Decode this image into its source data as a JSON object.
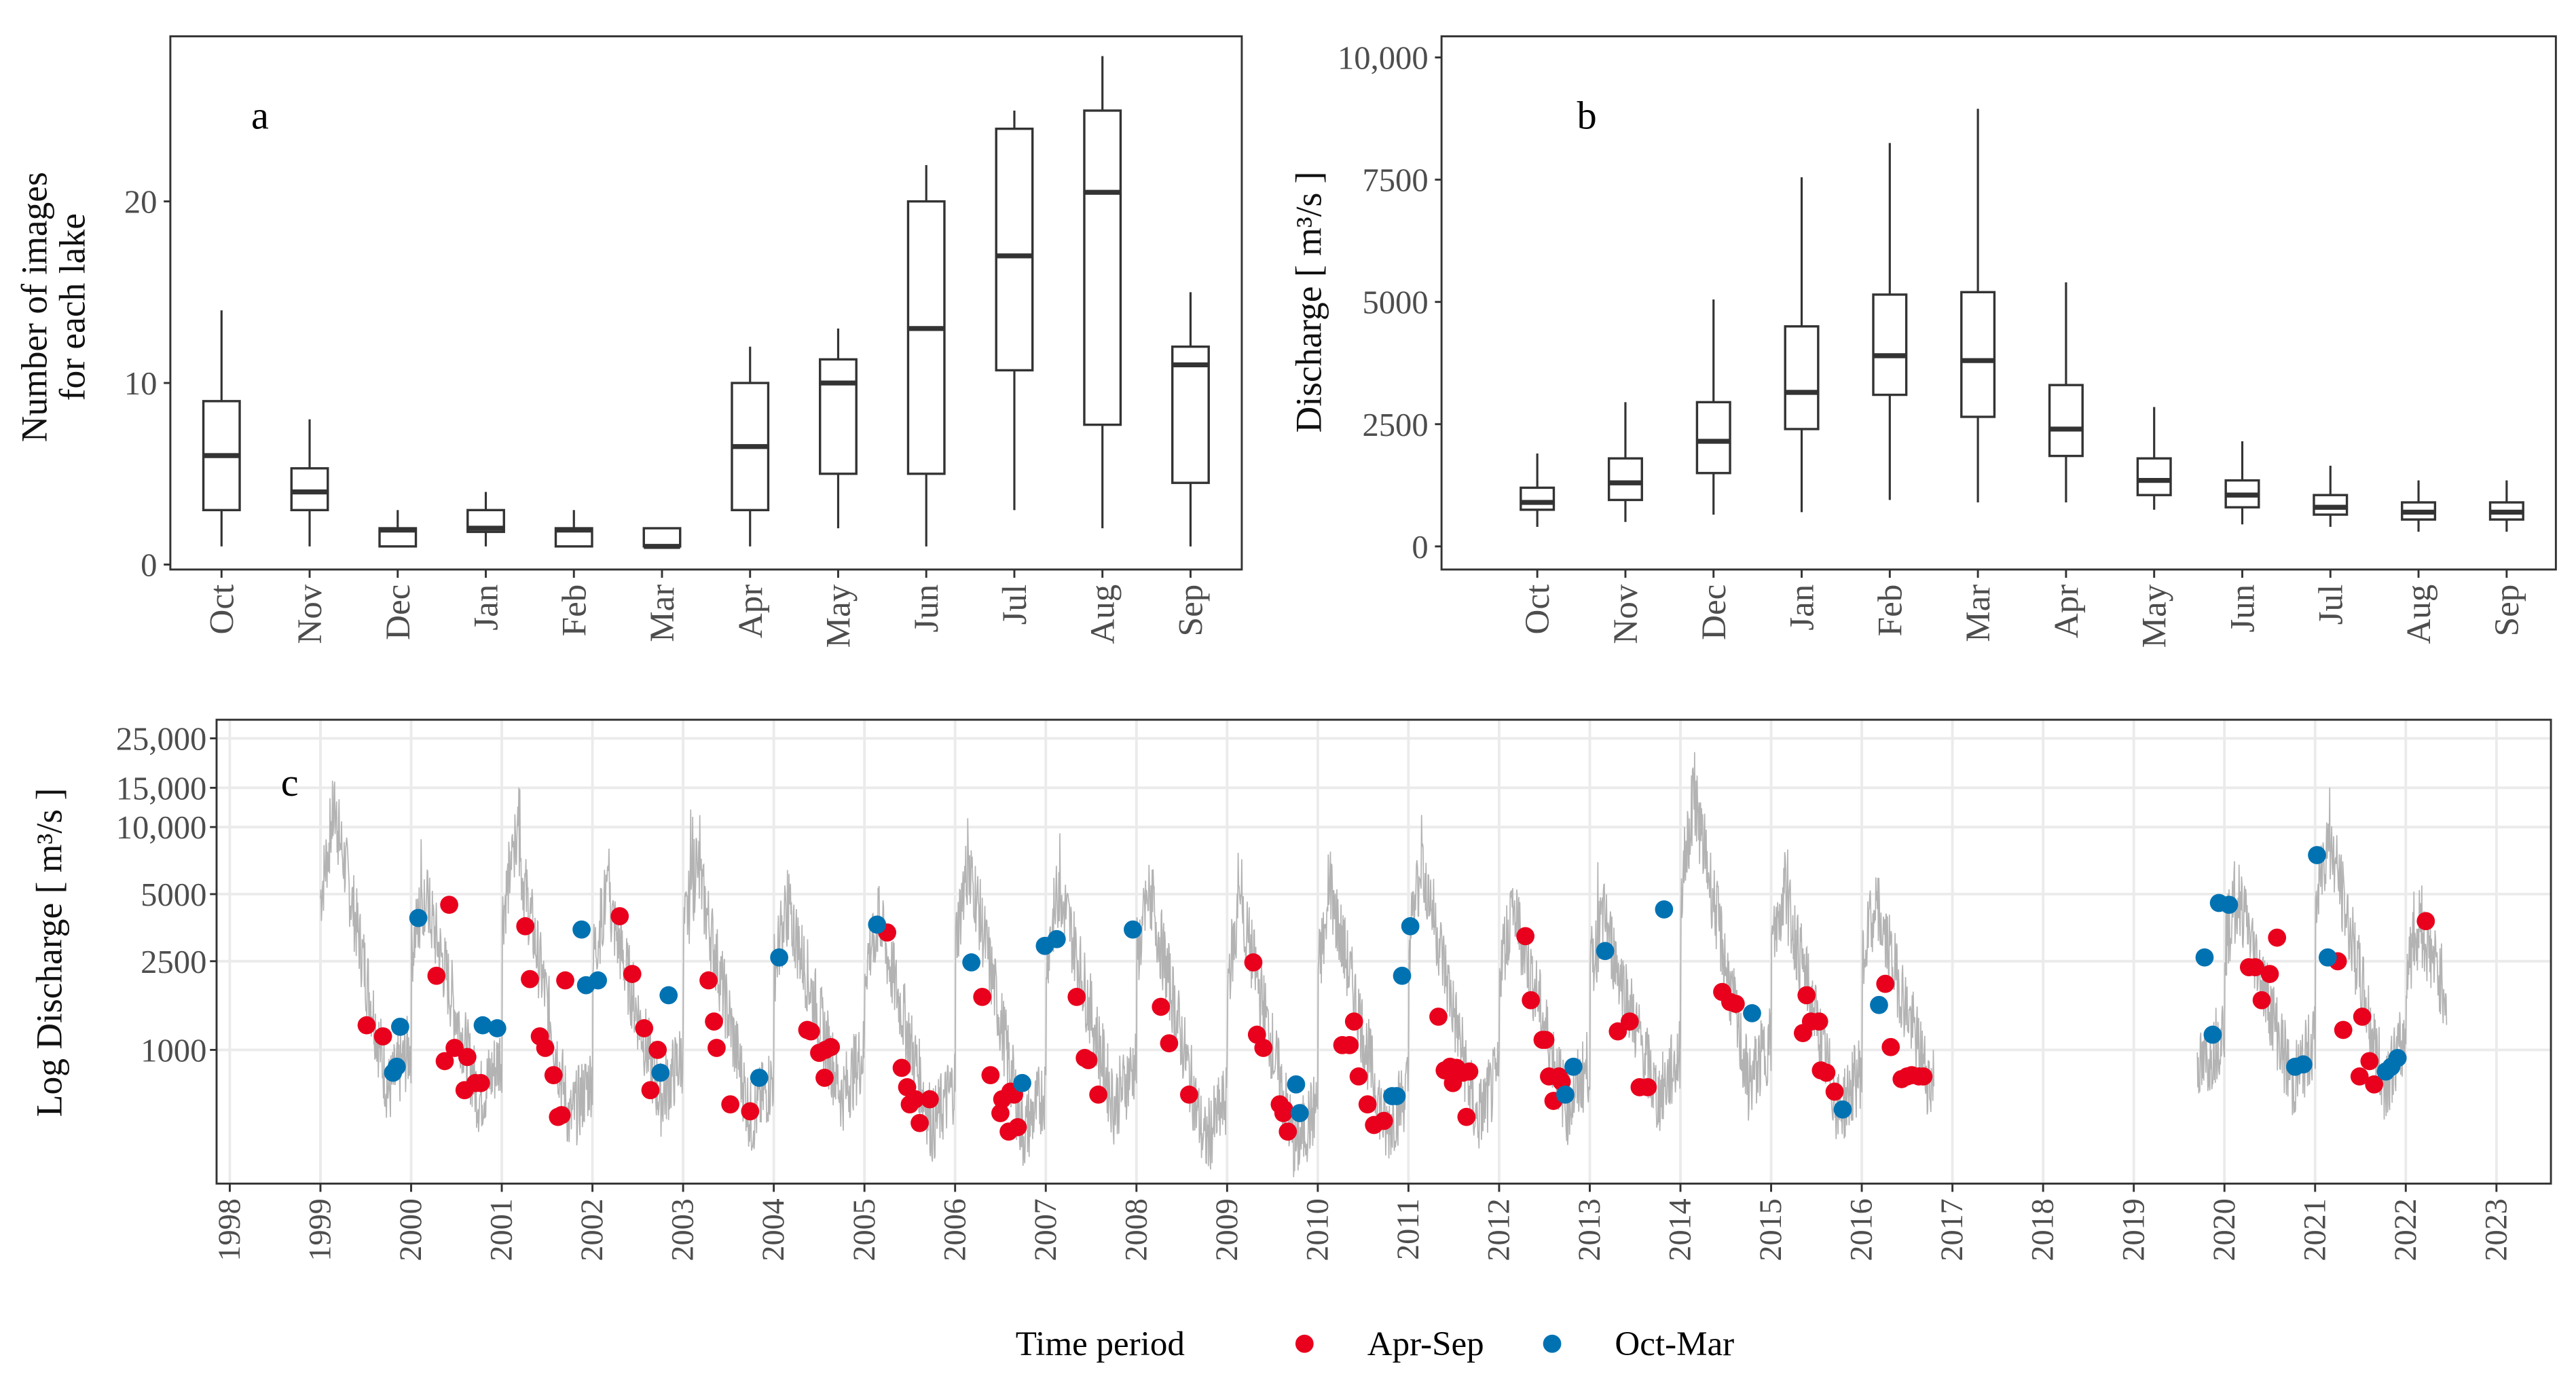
{
  "colors": {
    "apr_sep": "#e8001c",
    "oct_mar": "#0072b2",
    "line": "#b3b3b3",
    "box": "#333333",
    "grid": "#ebebeb"
  },
  "chart_data": [
    {
      "panel": "a",
      "type": "box",
      "panel_label": "a",
      "ylabel_lines": [
        "Number of images",
        "for each lake"
      ],
      "xlabel": "",
      "ylim": [
        -0.5,
        29
      ],
      "yticks": [
        0,
        10,
        20
      ],
      "ytick_labels": [
        "0",
        "10",
        "20"
      ],
      "categories": [
        "Oct",
        "Nov",
        "Dec",
        "Jan",
        "Feb",
        "Mar",
        "Apr",
        "May",
        "Jun",
        "Jul",
        "Aug",
        "Sep"
      ],
      "boxes": [
        {
          "min": 1,
          "q1": 3,
          "median": 6,
          "q3": 9,
          "max": 14
        },
        {
          "min": 1,
          "q1": 3,
          "median": 4,
          "q3": 5.3,
          "max": 8
        },
        {
          "min": 1,
          "q1": 1,
          "median": 1.9,
          "q3": 2,
          "max": 3
        },
        {
          "min": 1,
          "q1": 1.8,
          "median": 2,
          "q3": 3,
          "max": 4
        },
        {
          "min": 1,
          "q1": 1,
          "median": 1.9,
          "q3": 2,
          "max": 3
        },
        {
          "min": 1,
          "q1": 1,
          "median": 1,
          "q3": 2,
          "max": 2
        },
        {
          "min": 1,
          "q1": 3,
          "median": 6.5,
          "q3": 10,
          "max": 12
        },
        {
          "min": 2,
          "q1": 5,
          "median": 10,
          "q3": 11.3,
          "max": 13
        },
        {
          "min": 1,
          "q1": 5,
          "median": 13,
          "q3": 20,
          "max": 22
        },
        {
          "min": 3,
          "q1": 10.7,
          "median": 17,
          "q3": 24,
          "max": 25
        },
        {
          "min": 2,
          "q1": 7.7,
          "median": 20.5,
          "q3": 25,
          "max": 28
        },
        {
          "min": 1,
          "q1": 4.5,
          "median": 11,
          "q3": 12,
          "max": 15
        }
      ]
    },
    {
      "panel": "b",
      "type": "box",
      "panel_label": "b",
      "ylabel": "Discharge [ m³/s ]",
      "xlabel": "",
      "ylim": [
        -500,
        10500
      ],
      "yticks": [
        0,
        2500,
        5000,
        7500,
        10000
      ],
      "ytick_labels": [
        "0",
        "2500",
        "5000",
        "7500",
        "10,000"
      ],
      "categories": [
        "Oct",
        "Nov",
        "Dec",
        "Jan",
        "Feb",
        "Mar",
        "Apr",
        "May",
        "Jun",
        "Jul",
        "Aug",
        "Sep"
      ],
      "boxes": [
        {
          "min": 400,
          "q1": 750,
          "median": 900,
          "q3": 1200,
          "max": 1900
        },
        {
          "min": 500,
          "q1": 950,
          "median": 1300,
          "q3": 1800,
          "max": 2950
        },
        {
          "min": 650,
          "q1": 1500,
          "median": 2150,
          "q3": 2950,
          "max": 5050
        },
        {
          "min": 700,
          "q1": 2400,
          "median": 3150,
          "q3": 4500,
          "max": 7550
        },
        {
          "min": 950,
          "q1": 3100,
          "median": 3900,
          "q3": 5150,
          "max": 8250
        },
        {
          "min": 900,
          "q1": 2650,
          "median": 3800,
          "q3": 5200,
          "max": 8950
        },
        {
          "min": 900,
          "q1": 1850,
          "median": 2400,
          "q3": 3300,
          "max": 5400
        },
        {
          "min": 750,
          "q1": 1050,
          "median": 1350,
          "q3": 1800,
          "max": 2850
        },
        {
          "min": 450,
          "q1": 800,
          "median": 1050,
          "q3": 1350,
          "max": 2150
        },
        {
          "min": 400,
          "q1": 650,
          "median": 800,
          "q3": 1050,
          "max": 1650
        },
        {
          "min": 300,
          "q1": 550,
          "median": 700,
          "q3": 900,
          "max": 1350
        },
        {
          "min": 300,
          "q1": 550,
          "median": 700,
          "q3": 900,
          "max": 1350
        }
      ]
    },
    {
      "panel": "c",
      "type": "scatter",
      "panel_label": "c",
      "ylabel": "Log Discharge [ m³/s ]",
      "xlabel": "",
      "yscale": "log",
      "ylim": [
        250,
        30000
      ],
      "xlim": [
        1997.85,
        2023.6
      ],
      "yticks": [
        1000,
        2500,
        5000,
        10000,
        15000,
        25000
      ],
      "ytick_labels": [
        "1000",
        "2500",
        "5000",
        "10,000",
        "15,000",
        "25,000"
      ],
      "xticks": [
        1998,
        1999,
        2000,
        2001,
        2002,
        2003,
        2004,
        2005,
        2006,
        2007,
        2008,
        2009,
        2010,
        2011,
        2012,
        2013,
        2014,
        2015,
        2016,
        2017,
        2018,
        2019,
        2020,
        2021,
        2022,
        2023
      ],
      "xtick_labels": [
        "1998",
        "1999",
        "2000",
        "2001",
        "2002",
        "2003",
        "2004",
        "2005",
        "2006",
        "2007",
        "2008",
        "2009",
        "2010",
        "2011",
        "2012",
        "2013",
        "2014",
        "2015",
        "2016",
        "2017",
        "2018",
        "2019",
        "2020",
        "2021",
        "2022",
        "2023"
      ],
      "grid": true,
      "legend": {
        "title": "Time period",
        "position": "bottom",
        "entries": [
          "Apr-Sep",
          "Oct-Mar"
        ]
      },
      "line_series": {
        "name": "daily discharge",
        "segments": [
          [
            1999.0,
            2016.8
          ],
          [
            2019.7,
            2022.45
          ]
        ],
        "annual_peaks": {
          "1999": 22000,
          "2000": 9000,
          "2001": 16000,
          "2002": 9000,
          "2003": 12000,
          "2004": 8000,
          "2005": 7000,
          "2006": 13000,
          "2007": 10000,
          "2008": 9000,
          "2009": 8000,
          "2010": 9000,
          "2011": 13000,
          "2012": 8000,
          "2013": 7000,
          "2014": 25000,
          "2015": 9000,
          "2016": 8000,
          "2020": 9000,
          "2021": 17000,
          "2022": 6500
        },
        "annual_troughs": {
          "1999": 650,
          "2000": 600,
          "2001": 480,
          "2002": 600,
          "2003": 480,
          "2004": 620,
          "2005": 450,
          "2006": 420,
          "2007": 560,
          "2008": 380,
          "2009": 360,
          "2010": 430,
          "2011": 480,
          "2012": 550,
          "2013": 600,
          "2014": 700,
          "2015": 520,
          "2016": 700,
          "2019": 800,
          "2020": 700,
          "2021": 700,
          "2022": 900
        }
      },
      "series": [
        {
          "name": "Apr-Sep",
          "points": [
            [
              1999.51,
              1290
            ],
            [
              1999.69,
              1150
            ],
            [
              2000.28,
              2150
            ],
            [
              2000.42,
              4480
            ],
            [
              2000.37,
              890
            ],
            [
              2000.48,
              1020
            ],
            [
              2000.59,
              660
            ],
            [
              2000.62,
              930
            ],
            [
              2000.71,
              710
            ],
            [
              2000.77,
              710
            ],
            [
              2001.26,
              3590
            ],
            [
              2001.31,
              2080
            ],
            [
              2001.42,
              1150
            ],
            [
              2001.48,
              1020
            ],
            [
              2001.57,
              770
            ],
            [
              2001.62,
              500
            ],
            [
              2001.66,
              510
            ],
            [
              2001.7,
              2050
            ],
            [
              2002.3,
              3980
            ],
            [
              2002.44,
              2190
            ],
            [
              2002.57,
              1250
            ],
            [
              2002.64,
              660
            ],
            [
              2002.72,
              1000
            ],
            [
              2003.28,
              2050
            ],
            [
              2003.34,
              1340
            ],
            [
              2003.37,
              1020
            ],
            [
              2003.52,
              570
            ],
            [
              2003.74,
              530
            ],
            [
              2004.37,
              1230
            ],
            [
              2004.41,
              1210
            ],
            [
              2004.5,
              970
            ],
            [
              2004.57,
              1000
            ],
            [
              2004.63,
              1030
            ],
            [
              2004.56,
              750
            ],
            [
              2005.25,
              3360
            ],
            [
              2005.41,
              830
            ],
            [
              2005.47,
              680
            ],
            [
              2005.5,
              570
            ],
            [
              2005.56,
              600
            ],
            [
              2005.61,
              470
            ],
            [
              2005.72,
              600
            ],
            [
              2006.3,
              1730
            ],
            [
              2006.39,
              770
            ],
            [
              2006.5,
              520
            ],
            [
              2006.52,
              600
            ],
            [
              2006.59,
              430
            ],
            [
              2006.61,
              650
            ],
            [
              2006.69,
              450
            ],
            [
              2006.65,
              630
            ],
            [
              2007.34,
              1730
            ],
            [
              2007.43,
              920
            ],
            [
              2007.47,
              900
            ],
            [
              2007.58,
              630
            ],
            [
              2008.27,
              1560
            ],
            [
              2008.36,
              1070
            ],
            [
              2008.58,
              630
            ],
            [
              2009.29,
              2470
            ],
            [
              2009.33,
              1170
            ],
            [
              2009.4,
              1020
            ],
            [
              2009.58,
              570
            ],
            [
              2009.62,
              520
            ],
            [
              2009.67,
              430
            ],
            [
              2009.63,
              540
            ],
            [
              2010.27,
              1050
            ],
            [
              2010.35,
              1050
            ],
            [
              2010.4,
              1340
            ],
            [
              2010.45,
              760
            ],
            [
              2010.55,
              570
            ],
            [
              2010.62,
              460
            ],
            [
              2010.73,
              480
            ],
            [
              2011.33,
              1410
            ],
            [
              2011.4,
              810
            ],
            [
              2011.46,
              840
            ],
            [
              2011.49,
              710
            ],
            [
              2011.53,
              830
            ],
            [
              2011.6,
              790
            ],
            [
              2011.64,
              500
            ],
            [
              2011.67,
              800
            ],
            [
              2012.29,
              3240
            ],
            [
              2012.35,
              1670
            ],
            [
              2012.48,
              1110
            ],
            [
              2012.51,
              1110
            ],
            [
              2012.55,
              760
            ],
            [
              2012.6,
              590
            ],
            [
              2012.69,
              720
            ],
            [
              2012.66,
              760
            ],
            [
              2013.31,
              1210
            ],
            [
              2013.44,
              1340
            ],
            [
              2013.55,
              680
            ],
            [
              2013.64,
              680
            ],
            [
              2014.46,
              1820
            ],
            [
              2014.55,
              1640
            ],
            [
              2014.61,
              1610
            ],
            [
              2015.35,
              1190
            ],
            [
              2015.39,
              1760
            ],
            [
              2015.44,
              1340
            ],
            [
              2015.53,
              1340
            ],
            [
              2015.55,
              810
            ],
            [
              2015.61,
              790
            ],
            [
              2015.7,
              650
            ],
            [
              2016.26,
              1980
            ],
            [
              2016.32,
              1030
            ],
            [
              2016.44,
              740
            ],
            [
              2016.5,
              760
            ],
            [
              2016.55,
              770
            ],
            [
              2016.63,
              760
            ],
            [
              2016.68,
              760
            ],
            [
              2020.27,
              2350
            ],
            [
              2020.34,
              2350
            ],
            [
              2020.41,
              1670
            ],
            [
              2020.5,
              2190
            ],
            [
              2020.58,
              3190
            ],
            [
              2021.25,
              2500
            ],
            [
              2021.31,
              1230
            ],
            [
              2021.49,
              760
            ],
            [
              2021.52,
              1410
            ],
            [
              2021.6,
              890
            ],
            [
              2021.65,
              700
            ],
            [
              2022.22,
              3780
            ]
          ]
        },
        {
          "name": "Oct-Mar",
          "points": [
            [
              1999.8,
              790
            ],
            [
              1999.84,
              840
            ],
            [
              1999.88,
              1270
            ],
            [
              2000.08,
              3910
            ],
            [
              2000.79,
              1290
            ],
            [
              2000.95,
              1250
            ],
            [
              2001.88,
              3470
            ],
            [
              2001.93,
              1950
            ],
            [
              2002.06,
              2050
            ],
            [
              2002.75,
              790
            ],
            [
              2002.84,
              1760
            ],
            [
              2003.84,
              750
            ],
            [
              2004.06,
              2600
            ],
            [
              2005.14,
              3650
            ],
            [
              2006.18,
              2470
            ],
            [
              2006.74,
              710
            ],
            [
              2006.99,
              2930
            ],
            [
              2007.12,
              3140
            ],
            [
              2007.96,
              3470
            ],
            [
              2009.76,
              700
            ],
            [
              2009.8,
              520
            ],
            [
              2010.82,
              620
            ],
            [
              2010.87,
              620
            ],
            [
              2010.93,
              2150
            ],
            [
              2011.02,
              3590
            ],
            [
              2012.73,
              630
            ],
            [
              2012.82,
              840
            ],
            [
              2013.17,
              2780
            ],
            [
              2013.82,
              4270
            ],
            [
              2014.79,
              1460
            ],
            [
              2015.79,
              540
            ],
            [
              2016.19,
              1590
            ],
            [
              2019.78,
              2600
            ],
            [
              2019.87,
              1170
            ],
            [
              2019.94,
              4560
            ],
            [
              2020.05,
              4480
            ],
            [
              2020.78,
              840
            ],
            [
              2020.87,
              860
            ],
            [
              2021.02,
              7480
            ],
            [
              2021.14,
              2600
            ],
            [
              2021.78,
              800
            ],
            [
              2021.84,
              840
            ],
            [
              2021.91,
              920
            ]
          ]
        }
      ]
    }
  ]
}
